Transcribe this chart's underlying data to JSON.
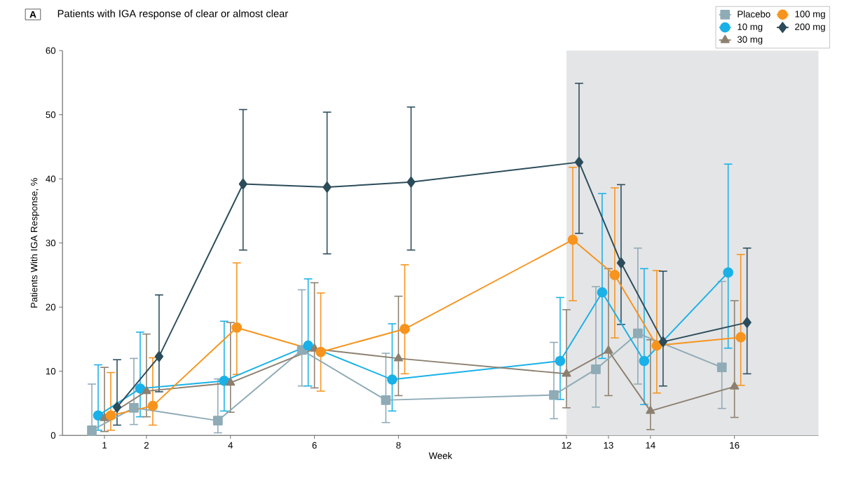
{
  "chart_data": {
    "type": "line",
    "title": "Patients with IGA response of clear or almost clear",
    "annotations": [
      "A"
    ],
    "xlabel": "Week",
    "ylabel": "Patients With IGA Response, %",
    "xlim": [
      0,
      18
    ],
    "xticks": [
      1,
      2,
      4,
      6,
      8,
      12,
      13,
      14,
      16
    ],
    "ylim": [
      0,
      60
    ],
    "yticks": [
      0,
      10,
      20,
      30,
      40,
      50,
      60
    ],
    "grid": false,
    "legend": "top right",
    "bands": [
      {
        "axis": "x",
        "from": 12,
        "to": 18,
        "color": "#e4e5e7"
      }
    ],
    "series": [
      {
        "name": "Placebo",
        "color": "#8eabb6",
        "marker": "square",
        "x": [
          0.7,
          1.7,
          3.7,
          5.7,
          7.7,
          11.7,
          12.7,
          13.7,
          15.7
        ],
        "values": [
          0.8,
          4.3,
          2.3,
          13.3,
          5.5,
          6.3,
          10.3,
          15.9,
          10.6
        ],
        "errors": [
          [
            0,
            8.0
          ],
          [
            1.7,
            12.0
          ],
          [
            0.4,
            8.8
          ],
          [
            7.7,
            22.7
          ],
          [
            2.0,
            12.8
          ],
          [
            2.6,
            14.5
          ],
          [
            4.4,
            23.2
          ],
          [
            8.0,
            29.2
          ],
          [
            4.2,
            24.0
          ]
        ]
      },
      {
        "name": "10 mg",
        "color": "#19b1e8",
        "marker": "circle",
        "x": [
          0.85,
          1.85,
          3.85,
          5.85,
          7.85,
          11.85,
          12.85,
          13.85,
          15.85
        ],
        "values": [
          3.1,
          7.3,
          8.5,
          14.0,
          8.7,
          11.6,
          22.3,
          11.6,
          25.4
        ],
        "errors": [
          [
            0.8,
            11.0
          ],
          [
            2.9,
            16.1
          ],
          [
            3.8,
            17.8
          ],
          [
            7.7,
            24.4
          ],
          [
            3.8,
            17.4
          ],
          [
            5.6,
            21.5
          ],
          [
            12.0,
            37.7
          ],
          [
            4.8,
            26.0
          ],
          [
            13.6,
            42.3
          ]
        ]
      },
      {
        "name": "30 mg",
        "color": "#8c8070",
        "marker": "triangle",
        "x": [
          1,
          2,
          4,
          6,
          8,
          12,
          13,
          14,
          16
        ],
        "values": [
          2.7,
          6.9,
          8.2,
          13.5,
          12.0,
          9.6,
          13.2,
          3.8,
          7.6
        ],
        "errors": [
          [
            0.6,
            10.6
          ],
          [
            2.9,
            15.8
          ],
          [
            3.6,
            17.6
          ],
          [
            7.4,
            23.8
          ],
          [
            6.2,
            21.7
          ],
          [
            4.3,
            19.6
          ],
          [
            6.2,
            26.0
          ],
          [
            0.9,
            14.9
          ],
          [
            2.8,
            21.0
          ]
        ]
      },
      {
        "name": "100 mg",
        "color": "#f7941d",
        "marker": "circle",
        "x": [
          1.15,
          2.15,
          4.15,
          6.15,
          8.15,
          12.15,
          13.15,
          14.15,
          16.15
        ],
        "values": [
          3.1,
          4.6,
          16.8,
          13.0,
          16.6,
          30.5,
          25.0,
          14.0,
          15.3
        ],
        "errors": [
          [
            0.8,
            9.8
          ],
          [
            1.6,
            12.1
          ],
          [
            9.5,
            26.9
          ],
          [
            6.9,
            22.2
          ],
          [
            9.6,
            26.6
          ],
          [
            21.0,
            41.8
          ],
          [
            15.2,
            38.6
          ],
          [
            6.6,
            25.7
          ],
          [
            7.8,
            28.2
          ]
        ]
      },
      {
        "name": "200 mg",
        "color": "#2b4c5a",
        "marker": "diamond",
        "x": [
          1.3,
          2.3,
          4.3,
          6.3,
          8.3,
          12.3,
          13.3,
          14.3,
          16.3
        ],
        "values": [
          4.4,
          12.3,
          39.2,
          38.7,
          39.5,
          42.6,
          26.9,
          14.6,
          17.6
        ],
        "errors": [
          [
            1.6,
            11.8
          ],
          [
            6.8,
            21.9
          ],
          [
            28.9,
            50.8
          ],
          [
            28.3,
            50.4
          ],
          [
            28.9,
            51.2
          ],
          [
            31.5,
            54.9
          ],
          [
            17.3,
            39.1
          ],
          [
            7.7,
            25.6
          ],
          [
            9.6,
            29.2
          ]
        ]
      }
    ]
  }
}
